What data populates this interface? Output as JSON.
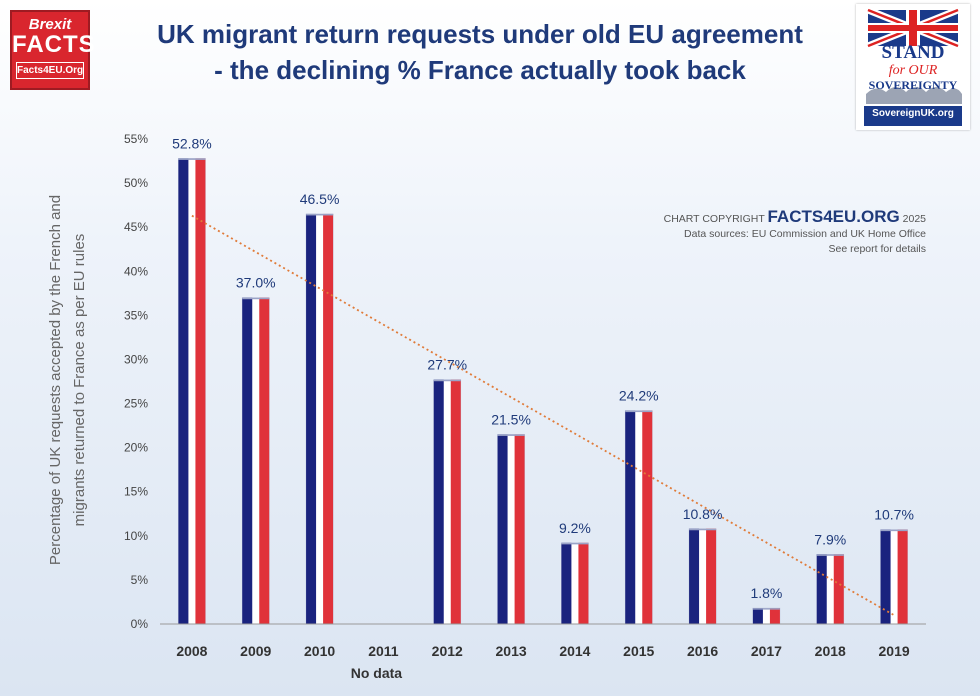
{
  "title_line1": "UK migrant return requests under old EU agreement",
  "title_line2": "- the declining % France actually took back",
  "logo_left": {
    "line1": "Brexit",
    "line2": "FACTS",
    "line3": "Facts4EU.Org"
  },
  "logo_right": {
    "line1": "STAND",
    "line2": "for OUR",
    "line3": "SOVEREIGNTY",
    "line4": "SovereignUK.org"
  },
  "copyright": {
    "prefix": "CHART COPYRIGHT",
    "brand": "FACTS4EU.ORG",
    "year": "2025",
    "line2": "Data sources: EU Commission and UK Home Office",
    "line3": "See report for details"
  },
  "colors": {
    "blue": "#1a237e",
    "white": "#ffffff",
    "red": "#e0323a",
    "trend": "#e07b39",
    "title": "#1f3a7a"
  },
  "chart_data": {
    "type": "bar",
    "categories": [
      "2008",
      "2009",
      "2010",
      "2011",
      "2012",
      "2013",
      "2014",
      "2015",
      "2016",
      "2017",
      "2018",
      "2019"
    ],
    "values": [
      52.8,
      37.0,
      46.5,
      null,
      27.7,
      21.5,
      9.2,
      24.2,
      10.8,
      1.8,
      7.9,
      10.7
    ],
    "data_labels": [
      "52.8%",
      "37.0%",
      "46.5%",
      "",
      "27.7%",
      "21.5%",
      "9.2%",
      "24.2%",
      "10.8%",
      "1.8%",
      "7.9%",
      "10.7%"
    ],
    "ylabel": "Percentage of UK requests accepted by the French and migrants returned to France as per EU rules",
    "ylabel_line1": "Percentage of UK requests accepted by the French and",
    "ylabel_line2": "migrants returned to France as per EU rules",
    "yticks": [
      "0%",
      "5%",
      "10%",
      "15%",
      "20%",
      "25%",
      "30%",
      "35%",
      "40%",
      "45%",
      "50%",
      "55%"
    ],
    "ylim": [
      0,
      55
    ],
    "annotation": "No data",
    "annotation_category": "2011",
    "trendline": {
      "type": "linear",
      "style": "dotted",
      "from": [
        "2008",
        46.3
      ],
      "to": [
        "2019",
        1.0
      ]
    },
    "grid": false,
    "legend": "none"
  }
}
